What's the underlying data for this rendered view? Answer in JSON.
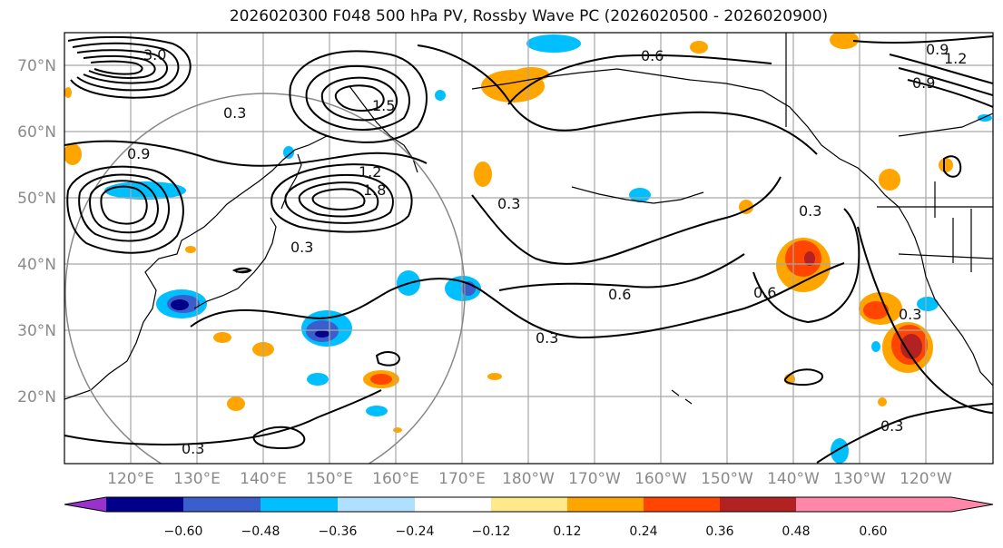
{
  "title": "2026020300 F048 500 hPa PV, Rossby Wave PC (2026020500 - 2026020900)",
  "lat_labels": [
    "70°N",
    "60°N",
    "50°N",
    "40°N",
    "30°N",
    "20°N"
  ],
  "lon_labels": [
    "120°E",
    "130°E",
    "140°E",
    "150°E",
    "160°E",
    "170°E",
    "180°W",
    "170°W",
    "160°W",
    "150°W",
    "140°W",
    "130°W",
    "120°W"
  ],
  "colorbar": {
    "ticks": [
      "−0.60",
      "−0.48",
      "−0.36",
      "−0.24",
      "−0.12",
      "0.12",
      "0.24",
      "0.36",
      "0.48",
      "0.60"
    ],
    "colors": [
      "#9932cc",
      "#00008b",
      "#3a5fcd",
      "#00bfff",
      "#b0e0ff",
      "#ffffff",
      "#ffe98a",
      "#ffa500",
      "#ff4500",
      "#b22222",
      "#ff88aa"
    ]
  },
  "contour_labels": [
    "3.0",
    "0.6",
    "0.3",
    "0.9",
    "1.5",
    "1.8",
    "1.2",
    "0.6",
    "0.3",
    "0.3",
    "0.3",
    "0.6",
    "0.3",
    "0.3",
    "0.3",
    "0.3",
    "0.9",
    "1.2",
    "0.9"
  ]
}
